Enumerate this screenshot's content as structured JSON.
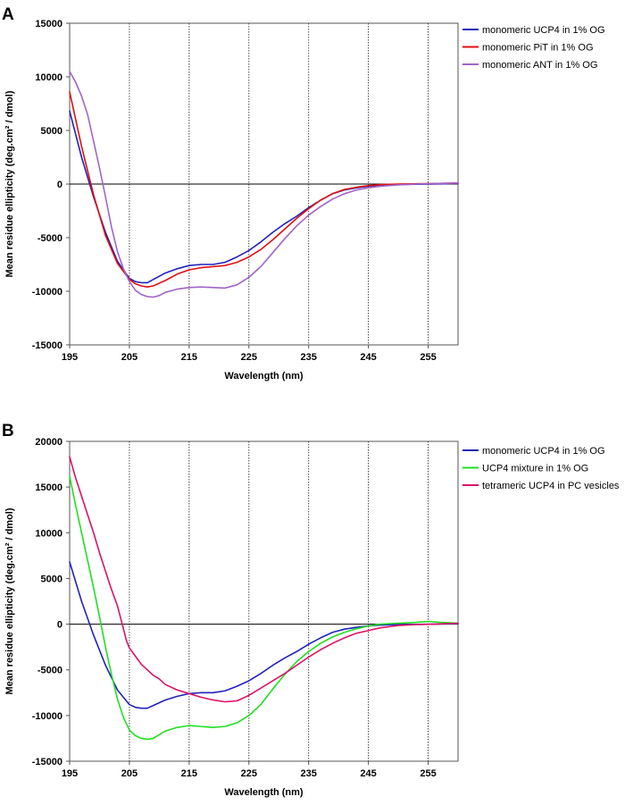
{
  "chart_data": [
    {
      "panel": "A",
      "type": "line",
      "xlabel": "Wavelength (nm)",
      "ylabel": "Mean residue ellipticity (deg.cm² / dmol)",
      "xlim": [
        195,
        260
      ],
      "ylim": [
        -15000,
        15000
      ],
      "xticks": [
        195,
        205,
        215,
        225,
        235,
        245,
        255
      ],
      "yticks": [
        -15000,
        -10000,
        -5000,
        0,
        5000,
        10000,
        15000
      ],
      "gridlines_x": [
        205,
        215,
        225,
        235,
        245,
        255
      ],
      "series": [
        {
          "name": "monomeric UCP4 in 1% OG",
          "color": "#2222bb",
          "x": [
            195,
            197,
            199,
            201,
            203,
            205,
            206,
            207,
            208,
            209,
            211,
            213,
            215,
            217,
            219,
            221,
            223,
            225,
            227,
            229,
            231,
            233,
            235,
            237,
            239,
            241,
            243,
            245,
            247,
            250,
            253,
            256,
            260
          ],
          "y": [
            6800,
            2500,
            -1200,
            -4500,
            -7200,
            -8800,
            -9100,
            -9200,
            -9200,
            -8900,
            -8300,
            -7900,
            -7600,
            -7500,
            -7500,
            -7300,
            -6800,
            -6200,
            -5400,
            -4500,
            -3700,
            -3000,
            -2200,
            -1500,
            -900,
            -550,
            -350,
            -200,
            -100,
            -50,
            -20,
            0,
            50
          ]
        },
        {
          "name": "monomeric PiT in 1% OG",
          "color": "#dd1111",
          "x": [
            195,
            197,
            199,
            201,
            203,
            205,
            206,
            207,
            208,
            209,
            211,
            213,
            215,
            217,
            219,
            221,
            223,
            225,
            227,
            229,
            231,
            233,
            235,
            237,
            239,
            241,
            243,
            245,
            247,
            250,
            253,
            256,
            260
          ],
          "y": [
            8600,
            3500,
            -1000,
            -4800,
            -7400,
            -8900,
            -9300,
            -9500,
            -9600,
            -9500,
            -9000,
            -8400,
            -8000,
            -7800,
            -7700,
            -7600,
            -7300,
            -6800,
            -6100,
            -5200,
            -4200,
            -3200,
            -2300,
            -1500,
            -900,
            -500,
            -300,
            -150,
            -50,
            0,
            30,
            50,
            100
          ]
        },
        {
          "name": "monomeric ANT in 1% OG",
          "color": "#a064c8",
          "x": [
            195,
            196,
            197,
            198,
            199,
            200,
            201,
            202,
            203,
            204,
            205,
            206,
            207,
            208,
            209,
            210,
            211,
            213,
            215,
            217,
            219,
            221,
            223,
            225,
            227,
            229,
            231,
            233,
            235,
            237,
            239,
            241,
            243,
            245,
            247,
            250,
            253,
            256,
            260
          ],
          "y": [
            10500,
            9500,
            8200,
            6500,
            4000,
            1500,
            -1200,
            -4000,
            -6300,
            -7900,
            -9100,
            -9900,
            -10300,
            -10500,
            -10550,
            -10400,
            -10100,
            -9800,
            -9650,
            -9600,
            -9650,
            -9700,
            -9400,
            -8700,
            -7700,
            -6400,
            -5100,
            -3900,
            -2900,
            -2100,
            -1400,
            -900,
            -550,
            -350,
            -200,
            -80,
            0,
            50,
            100
          ]
        }
      ]
    },
    {
      "panel": "B",
      "type": "line",
      "xlabel": "Wavelength (nm)",
      "ylabel": "Mean residue ellipticity (deg.cm² / dmol)",
      "xlim": [
        195,
        260
      ],
      "ylim": [
        -15000,
        20000
      ],
      "xticks": [
        195,
        205,
        215,
        225,
        235,
        245,
        255
      ],
      "yticks": [
        -15000,
        -10000,
        -5000,
        0,
        5000,
        10000,
        15000,
        20000
      ],
      "gridlines_x": [
        205,
        215,
        225,
        235,
        245,
        255
      ],
      "series": [
        {
          "name": "monomeric UCP4 in 1% OG",
          "color": "#2222bb",
          "x": [
            195,
            197,
            199,
            201,
            203,
            205,
            206,
            207,
            208,
            209,
            211,
            213,
            215,
            217,
            219,
            221,
            223,
            225,
            227,
            229,
            231,
            233,
            235,
            237,
            239,
            241,
            243,
            245,
            247,
            250,
            253,
            256,
            260
          ],
          "y": [
            6800,
            2500,
            -1200,
            -4500,
            -7200,
            -8800,
            -9100,
            -9200,
            -9200,
            -8900,
            -8300,
            -7900,
            -7600,
            -7500,
            -7500,
            -7300,
            -6800,
            -6200,
            -5400,
            -4500,
            -3700,
            -3000,
            -2200,
            -1500,
            -900,
            -550,
            -350,
            -200,
            -100,
            -50,
            -20,
            0,
            50
          ]
        },
        {
          "name": "UCP4 mixture in 1% OG",
          "color": "#22dd22",
          "x": [
            195,
            196,
            197,
            198,
            199,
            200,
            201,
            202,
            203,
            204,
            205,
            206,
            207,
            208,
            209,
            210,
            211,
            213,
            215,
            217,
            219,
            221,
            223,
            225,
            227,
            229,
            231,
            233,
            235,
            237,
            239,
            241,
            243,
            245,
            247,
            250,
            253,
            255,
            257,
            260
          ],
          "y": [
            16200,
            13000,
            10000,
            7000,
            4000,
            800,
            -2500,
            -5500,
            -8200,
            -10200,
            -11600,
            -12200,
            -12500,
            -12600,
            -12500,
            -12100,
            -11700,
            -11300,
            -11100,
            -11200,
            -11300,
            -11200,
            -10800,
            -10000,
            -8800,
            -7100,
            -5500,
            -4100,
            -3000,
            -2100,
            -1400,
            -900,
            -500,
            -200,
            0,
            100,
            200,
            300,
            200,
            100
          ]
        },
        {
          "name": "tetrameric UCP4 in PC vesicles",
          "color": "#dd1166",
          "x": [
            195,
            196,
            197,
            198,
            199,
            200,
            201,
            202,
            203,
            204,
            204.5,
            205,
            206,
            207,
            208,
            209,
            210,
            211,
            213,
            215,
            217,
            219,
            221,
            223,
            225,
            227,
            229,
            231,
            233,
            235,
            237,
            239,
            241,
            243,
            245,
            247,
            250,
            253,
            256,
            260
          ],
          "y": [
            18300,
            16000,
            14000,
            12000,
            10000,
            7800,
            5800,
            3800,
            2000,
            -500,
            -1800,
            -2600,
            -3500,
            -4400,
            -5000,
            -5600,
            -6000,
            -6600,
            -7200,
            -7600,
            -8000,
            -8300,
            -8500,
            -8400,
            -7800,
            -7000,
            -6200,
            -5400,
            -4500,
            -3600,
            -2800,
            -2100,
            -1500,
            -1000,
            -700,
            -400,
            -150,
            -50,
            0,
            100
          ]
        }
      ]
    }
  ]
}
